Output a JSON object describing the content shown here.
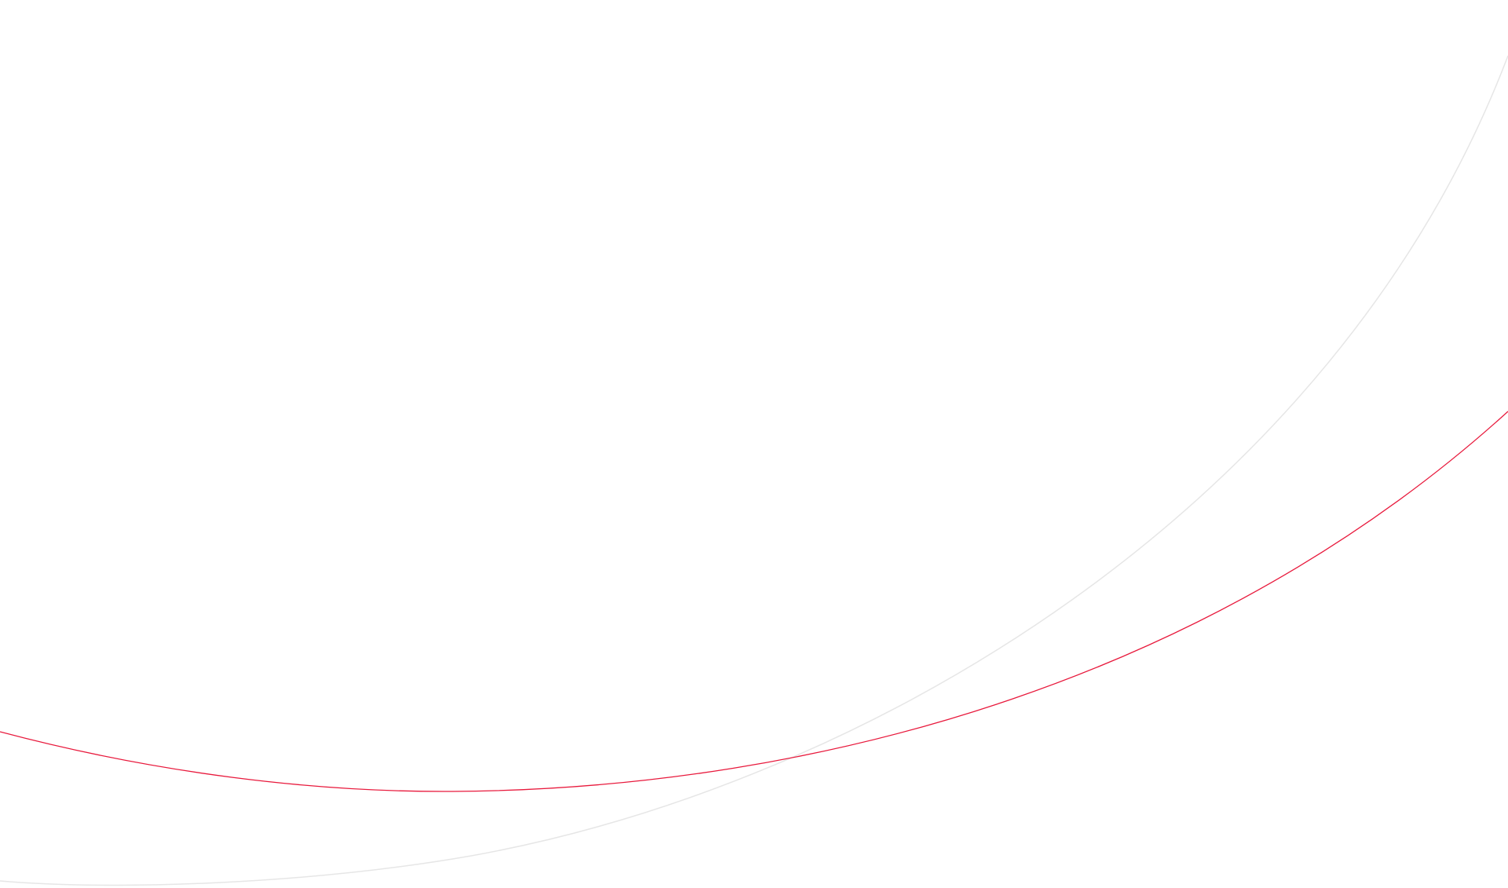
{
  "background": {
    "color": "#ffffff"
  },
  "curves": [
    {
      "name": "accent-curve",
      "color": "#e8193c"
    },
    {
      "name": "grey-curve",
      "color": "#e6e6e6"
    }
  ]
}
